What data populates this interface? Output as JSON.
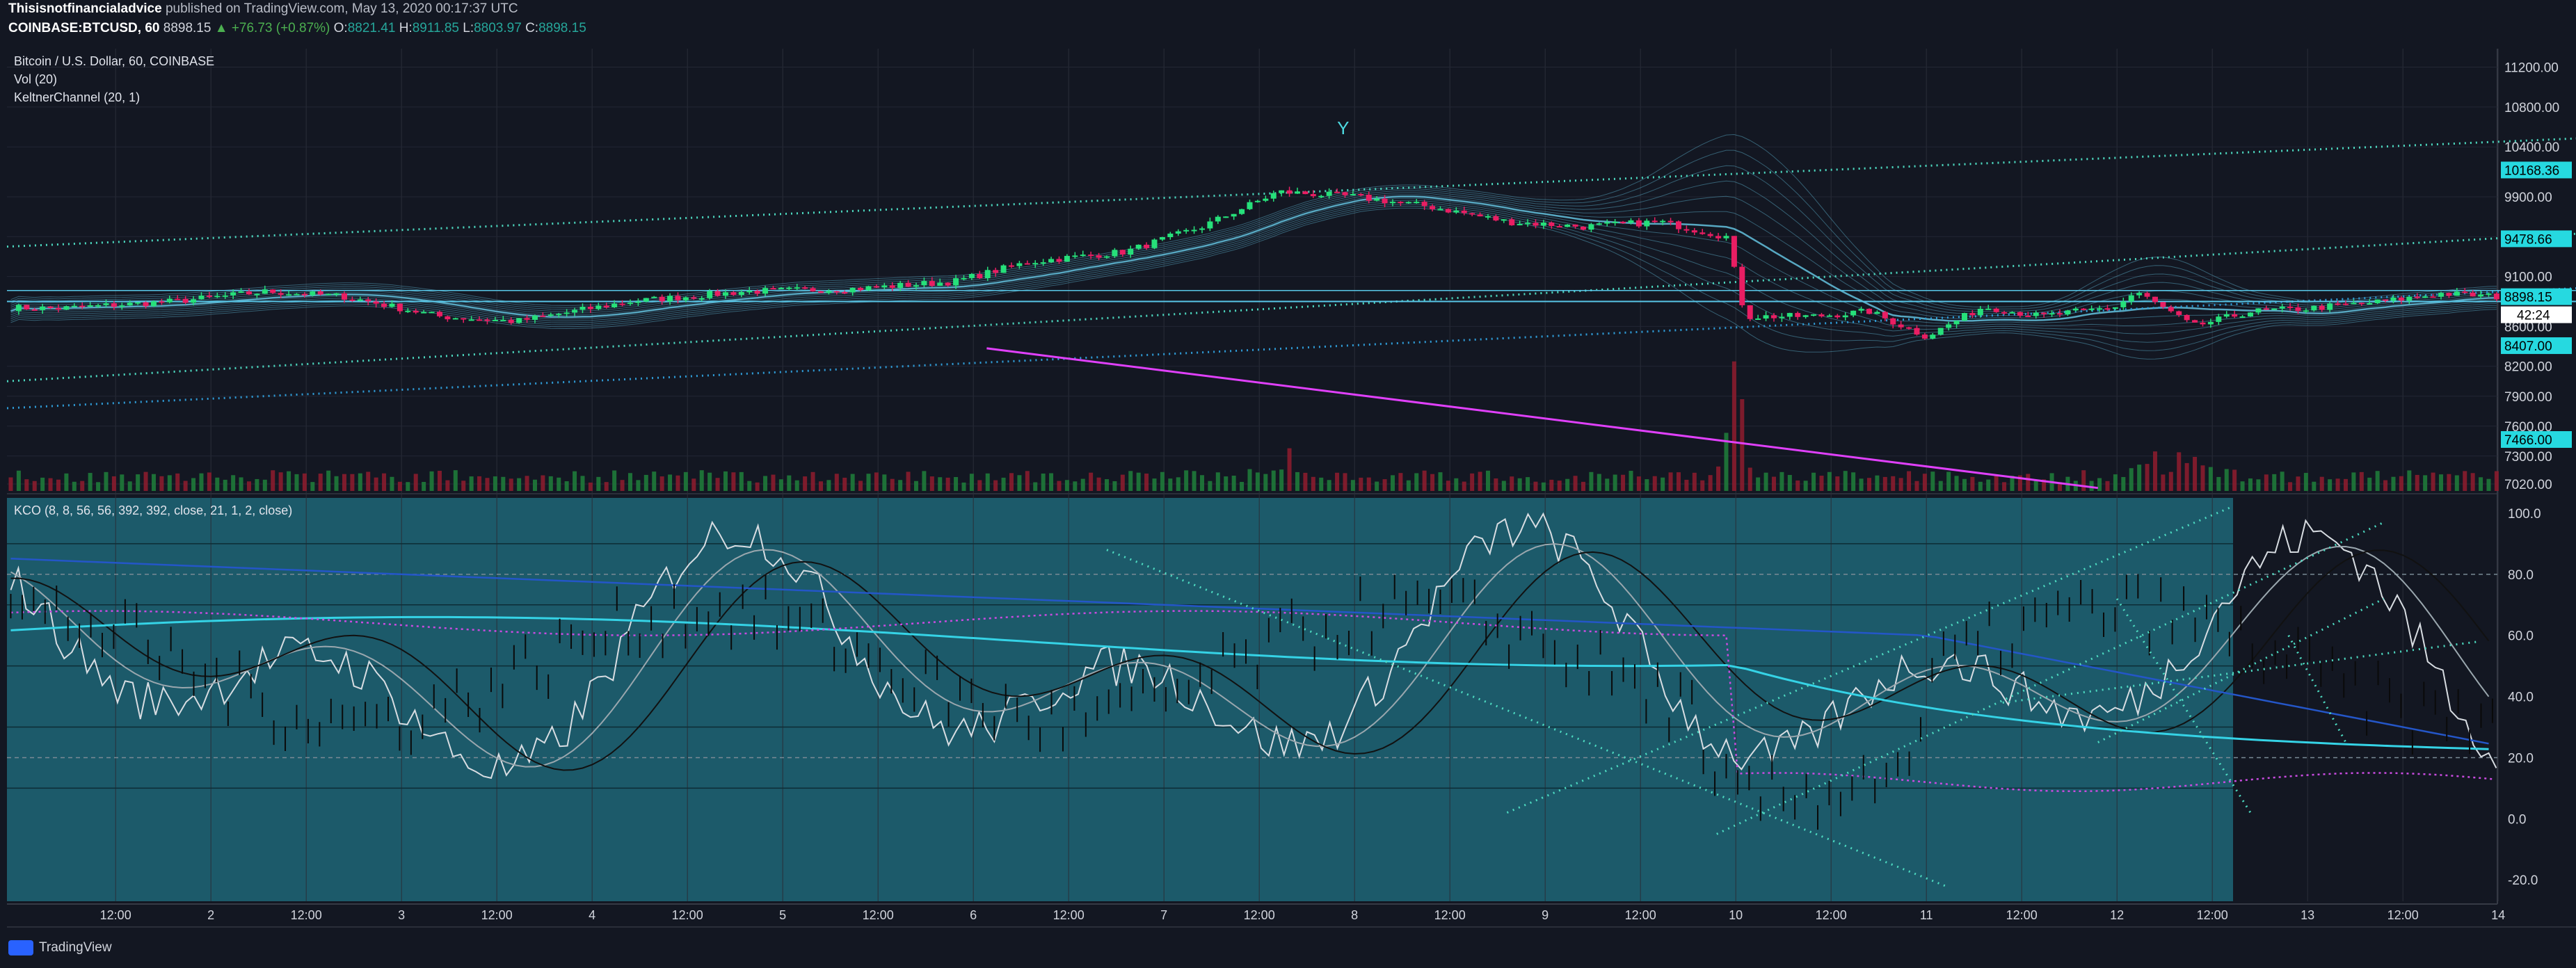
{
  "header": {
    "author": "Thisisnotfinancialadvice",
    "published": "published on TradingView.com, May 13, 2020 00:17:37 UTC",
    "symbol": "COINBASE:BTCUSD, 60",
    "last": "8898.15",
    "change": "▲ +76.73 (+0.87%)",
    "o_label": "O:",
    "o": "8821.41",
    "h_label": "H:",
    "h": "8911.85",
    "l_label": "L:",
    "l": "8803.97",
    "c_label": "C:",
    "c": "8898.15"
  },
  "price_panel": {
    "title": "Bitcoin / U.S. Dollar, 60, COINBASE",
    "vol_label": "Vol (20)",
    "kc_label": "KeltnerChannel (20, 1)"
  },
  "osc_panel": {
    "label": "KCO (8, 8, 56, 56, 392, 392, close, 21, 1, 2, close)"
  },
  "footer": {
    "brand": "TradingView"
  },
  "colors": {
    "background": "#131722",
    "up": "#26e07a",
    "down": "#e91e63",
    "keltner": "#5fb8d4",
    "trend": "#4dd9c0",
    "magenta": "#e040fb",
    "osc_bg": "#1c5a6a",
    "price_badge": "#26d9e0"
  },
  "chart_data": [
    {
      "type": "candlestick",
      "title": "Bitcoin / U.S. Dollar, 60, COINBASE",
      "y_ticks": [
        11200,
        10800,
        10400,
        9900,
        9500,
        9100,
        8600,
        8200,
        7900,
        7600,
        7300,
        7020
      ],
      "ylim": [
        6950,
        11350
      ],
      "x_ticks": [
        "12:00",
        "2",
        "12:00",
        "3",
        "12:00",
        "4",
        "12:00",
        "5",
        "12:00",
        "6",
        "12:00",
        "7",
        "12:00",
        "8",
        "12:00",
        "9",
        "12:00",
        "10",
        "12:00",
        "11",
        "12:00",
        "12",
        "12:00",
        "13",
        "12:00",
        "14"
      ],
      "price_labels": [
        {
          "value": 10168.36,
          "text": "10168.36"
        },
        {
          "value": 9478.66,
          "text": "9478.66"
        },
        {
          "value": 8898.15,
          "text": "8898.15"
        },
        {
          "value": 8407.0,
          "text": "8407.00"
        },
        {
          "value": 7466.0,
          "text": "7466.00"
        }
      ],
      "countdown": "42:24",
      "annotation": "Y",
      "key_points": [
        {
          "day": 0.6,
          "price": 8800
        },
        {
          "day": 1.2,
          "price": 8780
        },
        {
          "day": 1.8,
          "price": 8850
        },
        {
          "day": 2.3,
          "price": 8950
        },
        {
          "day": 2.7,
          "price": 8900
        },
        {
          "day": 3.2,
          "price": 8700
        },
        {
          "day": 3.6,
          "price": 8650
        },
        {
          "day": 4.2,
          "price": 8850
        },
        {
          "day": 4.8,
          "price": 8950
        },
        {
          "day": 5.4,
          "price": 8980
        },
        {
          "day": 5.9,
          "price": 9050
        },
        {
          "day": 6.3,
          "price": 9250
        },
        {
          "day": 6.8,
          "price": 9350
        },
        {
          "day": 7.2,
          "price": 9600
        },
        {
          "day": 7.6,
          "price": 9950
        },
        {
          "day": 8.0,
          "price": 9900
        },
        {
          "day": 8.4,
          "price": 9800
        },
        {
          "day": 8.8,
          "price": 9650
        },
        {
          "day": 9.2,
          "price": 9600
        },
        {
          "day": 9.6,
          "price": 9650
        },
        {
          "day": 9.95,
          "price": 9500
        },
        {
          "day": 10.05,
          "price": 8700
        },
        {
          "day": 10.4,
          "price": 8700
        },
        {
          "day": 10.7,
          "price": 8750
        },
        {
          "day": 11.0,
          "price": 8500
        },
        {
          "day": 11.3,
          "price": 8800
        },
        {
          "day": 11.6,
          "price": 8700
        },
        {
          "day": 12.0,
          "price": 8800
        },
        {
          "day": 12.1,
          "price": 8950
        },
        {
          "day": 12.4,
          "price": 8600
        },
        {
          "day": 12.7,
          "price": 8750
        },
        {
          "day": 13.0,
          "price": 8780
        },
        {
          "day": 13.4,
          "price": 8850
        },
        {
          "day": 13.7,
          "price": 8930
        },
        {
          "day": 14.0,
          "price": 8898
        }
      ]
    },
    {
      "type": "line",
      "title": "KCO (8, 8, 56, 56, 392, 392, close, 21, 1, 2, close)",
      "y_ticks": [
        100.0,
        80.0,
        60.0,
        40.0,
        20.0,
        0.0,
        -20.0
      ],
      "ylim": [
        -27,
        105
      ]
    }
  ]
}
